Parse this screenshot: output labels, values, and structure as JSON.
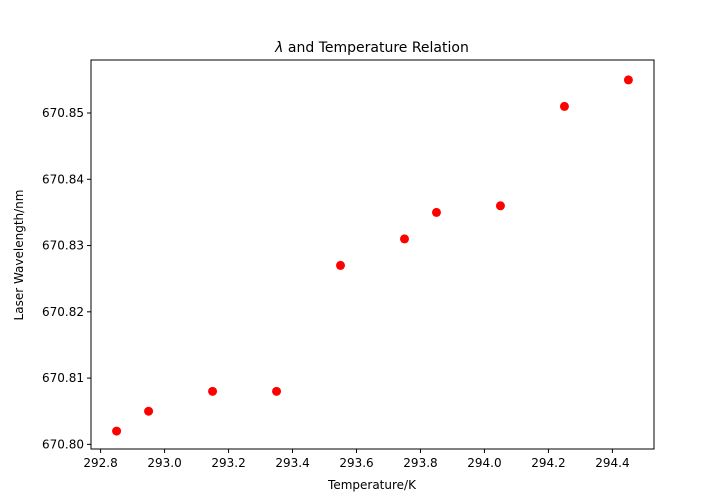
{
  "chart_data": {
    "type": "scatter",
    "title_symbol": "λ",
    "title_rest": " and Temperature Relation",
    "xlabel": "Temperature/K",
    "ylabel": "Laser Wavelength/nm",
    "xlim": [
      292.77,
      294.53
    ],
    "ylim": [
      670.7993,
      670.858
    ],
    "xticks": [
      292.8,
      293.0,
      293.2,
      293.4,
      293.6,
      293.8,
      294.0,
      294.2,
      294.4
    ],
    "xtick_labels": [
      "292.8",
      "293.0",
      "293.2",
      "293.4",
      "293.6",
      "293.8",
      "294.0",
      "294.2",
      "294.4"
    ],
    "yticks": [
      670.8,
      670.81,
      670.82,
      670.83,
      670.84,
      670.85
    ],
    "ytick_labels": [
      "670.80",
      "670.81",
      "670.82",
      "670.83",
      "670.84",
      "670.85"
    ],
    "grid": false,
    "marker_color": "#ff0000",
    "points": [
      {
        "x": 292.85,
        "y": 670.802
      },
      {
        "x": 292.95,
        "y": 670.805
      },
      {
        "x": 293.15,
        "y": 670.808
      },
      {
        "x": 293.35,
        "y": 670.808
      },
      {
        "x": 293.55,
        "y": 670.827
      },
      {
        "x": 293.75,
        "y": 670.831
      },
      {
        "x": 293.85,
        "y": 670.835
      },
      {
        "x": 294.05,
        "y": 670.836
      },
      {
        "x": 294.25,
        "y": 670.851
      },
      {
        "x": 294.45,
        "y": 670.855
      }
    ]
  }
}
